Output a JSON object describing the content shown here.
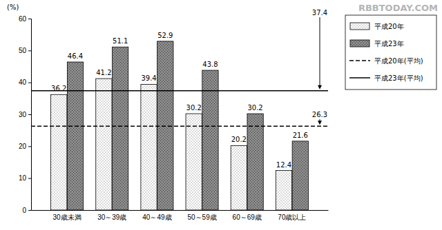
{
  "chart_data": {
    "type": "bar",
    "ylabel": "(%)",
    "annotations": [
      "RBBTODAY.COM"
    ],
    "categories": [
      "30歳未満",
      "30～39歳",
      "40～49歳",
      "50～59歳",
      "60～69歳",
      "70歳以上"
    ],
    "series": [
      {
        "name": "平成20年",
        "color": "#ffffff",
        "values": [
          36.2,
          41.2,
          39.4,
          30.2,
          20.2,
          12.4
        ]
      },
      {
        "name": "平成23年",
        "color": "#8a8a8a",
        "values": [
          46.4,
          51.1,
          52.9,
          43.8,
          30.2,
          21.6
        ]
      }
    ],
    "reference_lines": [
      {
        "name": "平成20年(平均)",
        "value": 26.3,
        "color": "#000000",
        "line_style": "dashed"
      },
      {
        "name": "平成23年(平均)",
        "value": 37.4,
        "color": "#000000",
        "line_style": "solid"
      }
    ],
    "ylim": [
      0,
      60
    ],
    "yticks": [
      0,
      10,
      20,
      30,
      40,
      50,
      60
    ],
    "grid": false,
    "legend": "right",
    "data_labels": true
  }
}
